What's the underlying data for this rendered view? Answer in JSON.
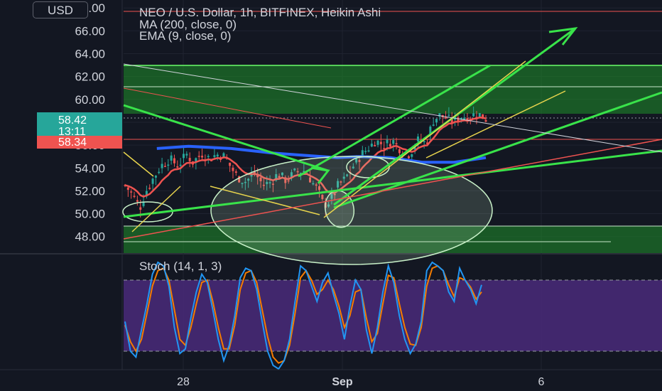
{
  "currency_button": "USD",
  "legend": {
    "title": "NEO / U.S. Dollar, 1h, BITFINEX, Heikin Ashi",
    "ma": "MA (200, close, 0)",
    "ema": "EMA (9, close, 0)"
  },
  "price_tags": {
    "last_price": "58.42",
    "countdown": "13:11",
    "ema_value": "58.34",
    "colors": {
      "last": "#26a69a",
      "ema": "#ef5350"
    }
  },
  "stoch_label": "Stoch (14, 1, 3)",
  "colors": {
    "background": "#131722",
    "up": "#26a69a",
    "down": "#ef5350",
    "ma": "#2962ff",
    "ema": "#ef5350",
    "annotation_green": "#39e34a",
    "annotation_yellow": "#e8d44d",
    "stoch_band": "#4a2a7a",
    "stoch_k": "#2196f3",
    "stoch_d": "#f57c00"
  },
  "chart_data": {
    "type": "candlestick",
    "title": "NEO / U.S. Dollar, 1h, BITFINEX, Heikin Ashi",
    "y_ticks": [
      48,
      50,
      52,
      54,
      56,
      58,
      60,
      62,
      64,
      66,
      68
    ],
    "y_tick_labels": [
      "48.00",
      "50.00",
      "52.00",
      "54.00",
      "56.00",
      "58.00",
      "60.00",
      "62.00",
      "64.00",
      "66.00",
      "68.00"
    ],
    "ylim": [
      46.8,
      68.2
    ],
    "x_tick_labels": [
      "28",
      "Sep",
      "6"
    ],
    "price_path": [
      [
        0,
        52.5
      ],
      [
        0.04,
        51.5
      ],
      [
        0.07,
        50.5
      ],
      [
        0.1,
        52
      ],
      [
        0.13,
        53
      ],
      [
        0.17,
        54.2
      ],
      [
        0.21,
        54.8
      ],
      [
        0.25,
        54.2
      ],
      [
        0.29,
        55.2
      ],
      [
        0.32,
        54.5
      ],
      [
        0.36,
        55.3
      ],
      [
        0.4,
        54.8
      ],
      [
        0.43,
        55.2
      ],
      [
        0.47,
        55
      ],
      [
        0.5,
        54
      ],
      [
        0.53,
        53.2
      ],
      [
        0.57,
        52.8
      ],
      [
        0.61,
        53.6
      ],
      [
        0.65,
        52.5
      ],
      [
        0.69,
        52.8
      ],
      [
        0.72,
        53.5
      ],
      [
        0.76,
        52.9
      ],
      [
        0.8,
        53.6
      ],
      [
        0.85,
        53.8
      ],
      [
        0.88,
        52.8
      ],
      [
        0.91,
        52
      ],
      [
        0.93,
        51
      ],
      [
        0.95,
        50.8
      ],
      [
        0.98,
        51.5
      ],
      [
        1.0,
        52.4
      ],
      [
        1.03,
        52.9
      ],
      [
        1.06,
        53.7
      ],
      [
        1.09,
        54.6
      ],
      [
        1.12,
        55.3
      ],
      [
        1.15,
        55.8
      ],
      [
        1.18,
        56.4
      ],
      [
        1.22,
        56
      ],
      [
        1.26,
        56.4
      ],
      [
        1.3,
        55.6
      ],
      [
        1.34,
        55.2
      ],
      [
        1.38,
        56.4
      ],
      [
        1.42,
        56.2
      ],
      [
        1.45,
        58.1
      ],
      [
        1.48,
        58.6
      ],
      [
        1.51,
        58.4
      ],
      [
        1.54,
        58.1
      ],
      [
        1.58,
        58.5
      ],
      [
        1.62,
        58.5
      ],
      [
        1.66,
        58.8
      ],
      [
        1.7,
        58.3
      ]
    ],
    "ma200_path": [
      [
        0.15,
        55.7
      ],
      [
        0.3,
        55.9
      ],
      [
        0.5,
        55.7
      ],
      [
        0.7,
        55.3
      ],
      [
        0.85,
        55.1
      ],
      [
        1.0,
        54.9
      ],
      [
        1.1,
        55
      ],
      [
        1.25,
        54.9
      ],
      [
        1.4,
        54.5
      ],
      [
        1.55,
        54.5
      ],
      [
        1.7,
        54.9
      ]
    ],
    "stoch_k": [
      45,
      20,
      15,
      38,
      60,
      85,
      95,
      92,
      75,
      40,
      18,
      22,
      48,
      70,
      85,
      78,
      55,
      30,
      12,
      25,
      50,
      82,
      90,
      88,
      72,
      45,
      20,
      8,
      5,
      12,
      30,
      62,
      92,
      88,
      75,
      62,
      78,
      86,
      68,
      52,
      30,
      58,
      80,
      72,
      38,
      18,
      40,
      70,
      92,
      78,
      50,
      30,
      18,
      26,
      45,
      88,
      95,
      92,
      88,
      70,
      62,
      90,
      80,
      72,
      60,
      76
    ],
    "stoch_d": [
      42,
      28,
      20,
      30,
      52,
      75,
      88,
      90,
      80,
      55,
      30,
      25,
      40,
      60,
      78,
      80,
      62,
      40,
      22,
      22,
      42,
      72,
      86,
      88,
      78,
      55,
      32,
      15,
      10,
      12,
      25,
      52,
      82,
      88,
      80,
      68,
      72,
      80,
      72,
      58,
      40,
      50,
      70,
      72,
      48,
      28,
      35,
      60,
      84,
      82,
      60,
      40,
      26,
      25,
      40,
      75,
      90,
      92,
      88,
      76,
      66,
      82,
      80,
      74,
      64,
      70
    ],
    "stoch_band": [
      20,
      80
    ],
    "stoch_ylim": [
      0,
      100
    ]
  }
}
